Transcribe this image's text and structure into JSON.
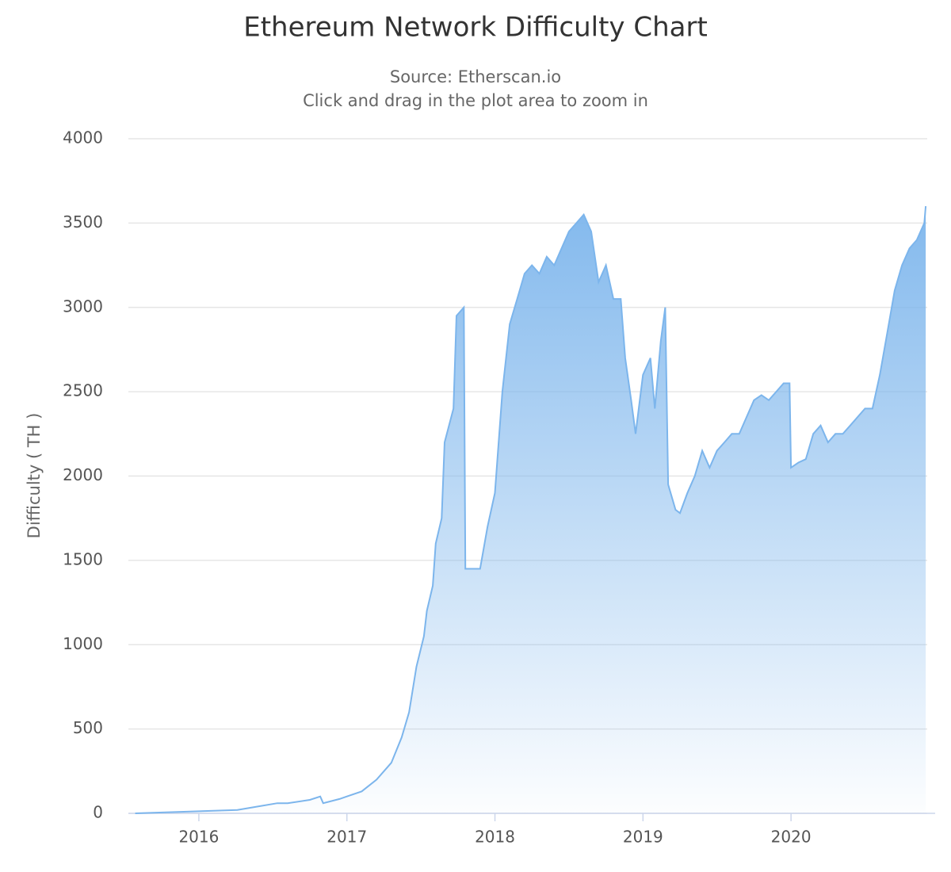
{
  "chart_data": {
    "type": "area",
    "title": "Ethereum Network Difficulty Chart",
    "subtitle": [
      "Source: Etherscan.io",
      "Click and drag in the plot area to zoom in"
    ],
    "y_label": "Difficulty ( TH )",
    "x": [
      2015.57,
      2016.0,
      2016.26,
      2016.53,
      2016.6,
      2016.75,
      2016.82,
      2016.84,
      2016.95,
      2017.0,
      2017.1,
      2017.2,
      2017.3,
      2017.37,
      2017.42,
      2017.47,
      2017.52,
      2017.54,
      2017.58,
      2017.6,
      2017.64,
      2017.66,
      2017.72,
      2017.74,
      2017.79,
      2017.8,
      2017.9,
      2017.95,
      2018.0,
      2018.05,
      2018.1,
      2018.15,
      2018.2,
      2018.25,
      2018.3,
      2018.35,
      2018.4,
      2018.45,
      2018.5,
      2018.55,
      2018.6,
      2018.65,
      2018.7,
      2018.75,
      2018.8,
      2018.85,
      2018.88,
      2018.92,
      2018.95,
      2019.0,
      2019.05,
      2019.08,
      2019.12,
      2019.15,
      2019.17,
      2019.22,
      2019.25,
      2019.3,
      2019.35,
      2019.4,
      2019.45,
      2019.5,
      2019.55,
      2019.6,
      2019.65,
      2019.7,
      2019.75,
      2019.8,
      2019.85,
      2019.9,
      2019.95,
      2019.99,
      2020.0,
      2020.05,
      2020.1,
      2020.15,
      2020.2,
      2020.25,
      2020.3,
      2020.35,
      2020.4,
      2020.45,
      2020.5,
      2020.55,
      2020.6,
      2020.65,
      2020.7,
      2020.75,
      2020.8,
      2020.85,
      2020.9,
      2020.91
    ],
    "series": [
      {
        "name": "Difficulty",
        "color": "#7cb5ec",
        "values": [
          0,
          12,
          20,
          60,
          60,
          80,
          100,
          60,
          85,
          100,
          130,
          200,
          300,
          450,
          600,
          870,
          1050,
          1200,
          1350,
          1600,
          1750,
          2200,
          2400,
          2950,
          3000,
          1450,
          1450,
          1700,
          1900,
          2500,
          2900,
          3050,
          3200,
          3250,
          3200,
          3300,
          3250,
          3350,
          3450,
          3500,
          3550,
          3450,
          3150,
          3250,
          3050,
          3050,
          2700,
          2450,
          2250,
          2600,
          2700,
          2400,
          2800,
          3000,
          1950,
          1800,
          1780,
          1900,
          2000,
          2150,
          2050,
          2150,
          2200,
          2250,
          2250,
          2350,
          2450,
          2480,
          2450,
          2500,
          2550,
          2550,
          2050,
          2080,
          2100,
          2250,
          2300,
          2200,
          2250,
          2250,
          2300,
          2350,
          2400,
          2400,
          2600,
          2850,
          3100,
          3250,
          3350,
          3400,
          3500,
          3600
        ]
      }
    ],
    "xlim": [
      2015.524,
      2020.92
    ],
    "xticks": [
      2016,
      2017,
      2018,
      2019,
      2020
    ],
    "ylim": [
      0,
      4000
    ],
    "yticks": [
      0,
      500,
      1000,
      1500,
      2000,
      2500,
      3000,
      3500,
      4000
    ],
    "grid": true
  }
}
